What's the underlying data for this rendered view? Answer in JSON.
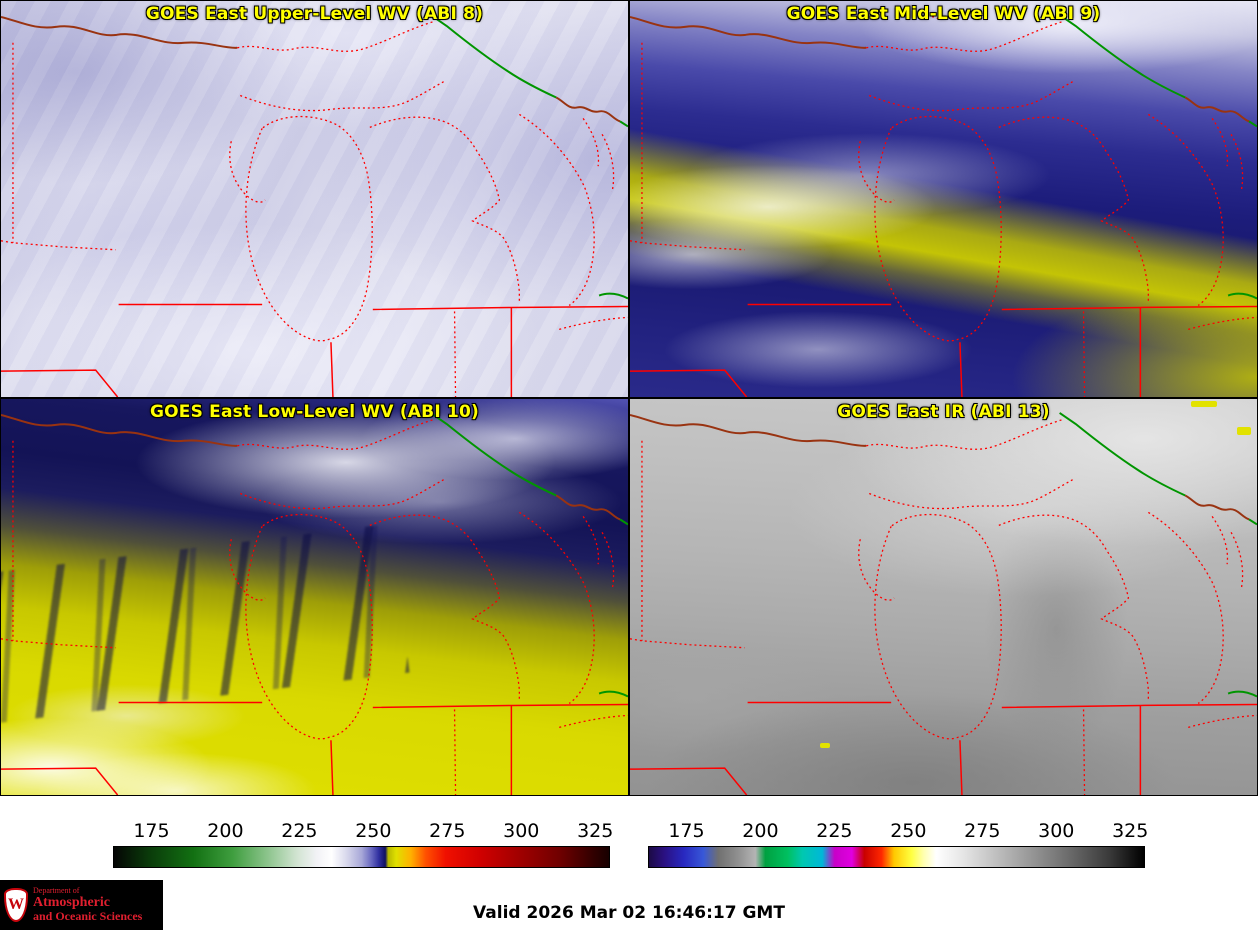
{
  "panels": [
    {
      "title": "GOES East Upper-Level WV (ABI 8)"
    },
    {
      "title": "GOES East Mid-Level WV (ABI 9)"
    },
    {
      "title": "GOES East Low-Level WV (ABI 10)"
    },
    {
      "title": "GOES East IR (ABI 13)"
    }
  ],
  "overlay_colors": {
    "title_text": "#ffff00",
    "state_and_shore_lines": "#ff0000",
    "international_border": "#993311",
    "border_river_green": "#009500"
  },
  "colorbars": {
    "ticks": [
      "175",
      "200",
      "225",
      "250",
      "275",
      "300",
      "325"
    ],
    "range": [
      162,
      330
    ],
    "wv_stops": [
      [
        "#050505",
        0
      ],
      [
        "#0a3a0a",
        7
      ],
      [
        "#127012",
        16
      ],
      [
        "#3f9e3f",
        24
      ],
      [
        "#8cc48c",
        31
      ],
      [
        "#d2e4d2",
        37
      ],
      [
        "#f2f2f6",
        41
      ],
      [
        "#ffffff",
        44
      ],
      [
        "#d8d8ec",
        47
      ],
      [
        "#a8a8d8",
        50
      ],
      [
        "#6868c0",
        52
      ],
      [
        "#3030a0",
        53.5
      ],
      [
        "#101060",
        54.8
      ],
      [
        "#b8b800",
        55.4
      ],
      [
        "#e0e000",
        57
      ],
      [
        "#ffb000",
        60
      ],
      [
        "#ff5000",
        63
      ],
      [
        "#f01000",
        67
      ],
      [
        "#d00000",
        74
      ],
      [
        "#a00000",
        82
      ],
      [
        "#700000",
        90
      ],
      [
        "#300000",
        97
      ],
      [
        "#180000",
        100
      ]
    ],
    "ir_stops": [
      [
        "#1c0a45",
        0
      ],
      [
        "#2a1080",
        3
      ],
      [
        "#2828c0",
        7
      ],
      [
        "#3858d8",
        11
      ],
      [
        "#707070",
        14
      ],
      [
        "#909090",
        18
      ],
      [
        "#b4b4b4",
        21.5
      ],
      [
        "#00a040",
        23.5
      ],
      [
        "#00c060",
        28
      ],
      [
        "#00c8b0",
        31
      ],
      [
        "#00b8d8",
        35
      ],
      [
        "#c800c8",
        37.5
      ],
      [
        "#e000e0",
        41
      ],
      [
        "#c80000",
        43.5
      ],
      [
        "#ff2800",
        47
      ],
      [
        "#ffc800",
        49.5
      ],
      [
        "#ffff40",
        53
      ],
      [
        "#ffffb0",
        55.5
      ],
      [
        "#ffffff",
        58
      ],
      [
        "#e8e8e8",
        63
      ],
      [
        "#c0c0c0",
        70
      ],
      [
        "#989898",
        77
      ],
      [
        "#6a6a6a",
        85
      ],
      [
        "#3a3a3a",
        93
      ],
      [
        "#000000",
        100
      ]
    ]
  },
  "footer": {
    "valid_time": "Valid 2026 Mar 02 16:46:17 GMT",
    "logo": {
      "crest_letter": "W",
      "line1": "Department of",
      "line2": "Atmospheric",
      "line3": "and Oceanic Sciences"
    }
  }
}
